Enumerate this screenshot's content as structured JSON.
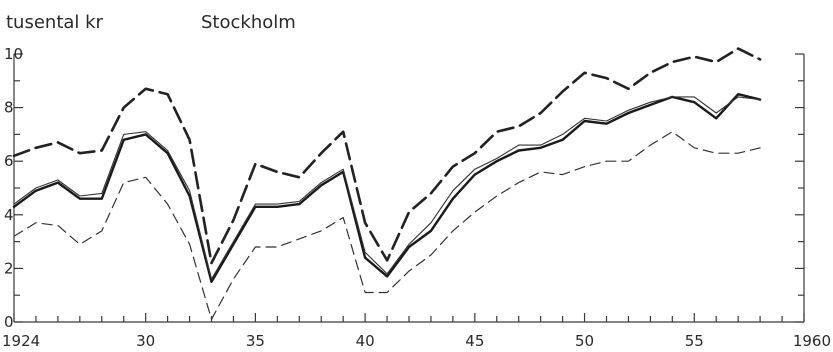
{
  "chart_data": {
    "type": "line",
    "ylabel": "tusental kr",
    "title": "Stockholm",
    "xlim": [
      1924,
      1960
    ],
    "ylim": [
      0,
      10
    ],
    "x_ticks": [
      1924,
      1930,
      1935,
      1940,
      1945,
      1950,
      1955,
      1960
    ],
    "x_tick_labels": [
      "1924",
      "30",
      "35",
      "40",
      "45",
      "50",
      "55",
      "1960"
    ],
    "y_ticks": [
      0,
      2,
      4,
      6,
      8,
      10
    ],
    "y_tick_labels": [
      "0",
      "2",
      "4",
      "6",
      "8",
      "10"
    ],
    "grid": false,
    "x": [
      1924,
      1925,
      1926,
      1927,
      1928,
      1929,
      1930,
      1931,
      1932,
      1933,
      1934,
      1935,
      1936,
      1937,
      1938,
      1939,
      1940,
      1941,
      1942,
      1943,
      1944,
      1945,
      1946,
      1947,
      1948,
      1949,
      1950,
      1951,
      1952,
      1953,
      1954,
      1955,
      1956,
      1957,
      1958
    ],
    "series": [
      {
        "style": "long-dash-heavy",
        "color": "#222222",
        "values": [
          6.2,
          6.5,
          6.7,
          6.3,
          6.4,
          8.0,
          8.7,
          8.5,
          6.8,
          2.2,
          3.8,
          5.9,
          5.6,
          5.4,
          6.3,
          7.1,
          3.7,
          2.3,
          4.1,
          4.8,
          5.8,
          6.3,
          7.1,
          7.3,
          7.8,
          8.6,
          9.3,
          9.1,
          8.7,
          9.3,
          9.7,
          9.9,
          9.7,
          10.2,
          9.8
        ]
      },
      {
        "style": "solid-heavy",
        "color": "#1a1a1a",
        "values": [
          4.3,
          4.9,
          5.2,
          4.6,
          4.6,
          6.8,
          7.0,
          6.3,
          4.7,
          1.5,
          2.9,
          4.3,
          4.3,
          4.4,
          5.1,
          5.6,
          2.4,
          1.7,
          2.8,
          3.4,
          4.6,
          5.5,
          6.0,
          6.4,
          6.5,
          6.8,
          7.5,
          7.4,
          7.8,
          8.1,
          8.4,
          8.2,
          7.6,
          8.5,
          8.3
        ]
      },
      {
        "style": "solid-thin",
        "color": "#333333",
        "values": [
          4.4,
          5.0,
          5.3,
          4.7,
          4.8,
          7.0,
          7.1,
          6.4,
          4.9,
          1.6,
          3.0,
          4.4,
          4.4,
          4.5,
          5.2,
          5.7,
          2.6,
          1.8,
          2.9,
          3.7,
          4.9,
          5.7,
          6.1,
          6.6,
          6.6,
          7.0,
          7.6,
          7.5,
          7.9,
          8.2,
          8.4,
          8.4,
          7.8,
          8.4,
          8.3
        ]
      },
      {
        "style": "dashed-thin",
        "color": "#333333",
        "values": [
          3.2,
          3.7,
          3.6,
          2.9,
          3.4,
          5.2,
          5.4,
          4.4,
          2.9,
          0.1,
          1.6,
          2.8,
          2.8,
          3.1,
          3.4,
          3.9,
          1.1,
          1.1,
          1.9,
          2.5,
          3.4,
          4.1,
          4.7,
          5.2,
          5.6,
          5.5,
          5.8,
          6.0,
          6.0,
          6.6,
          7.1,
          6.5,
          6.3,
          6.3,
          6.5
        ]
      }
    ]
  }
}
